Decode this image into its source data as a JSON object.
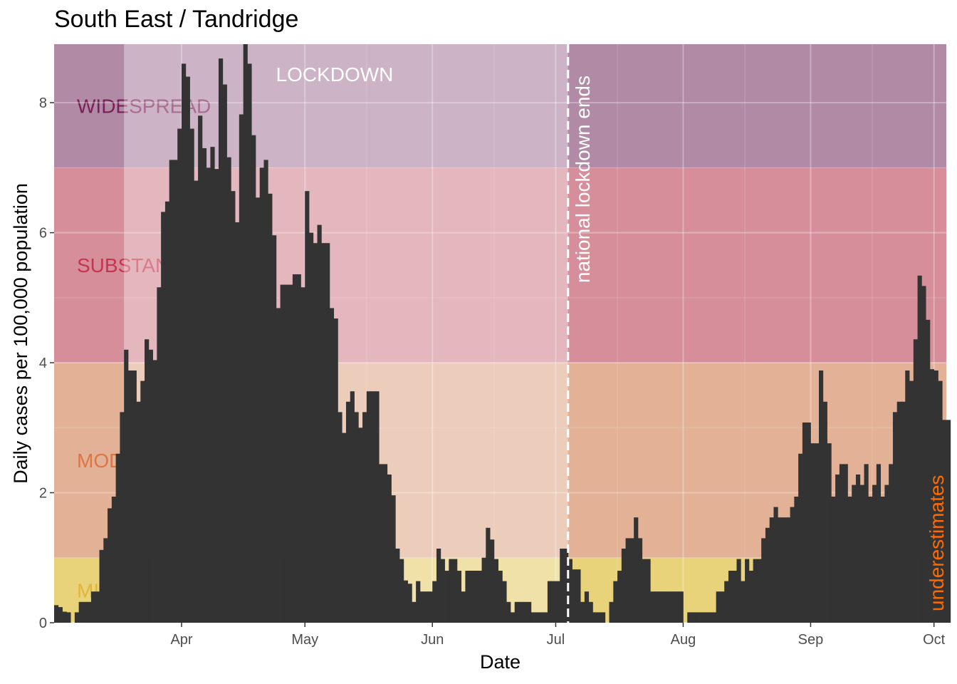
{
  "page": {
    "title": "South East / Tandridge"
  },
  "colors": {
    "bar": "#333333",
    "grid": "#ffffff",
    "lockdown_overlay": "#ffffff",
    "lockdown_text": "#ffffff",
    "lockdown_end_line": "#ffffff",
    "underestimates_text": "#ff6a00"
  },
  "chart_data": {
    "type": "bar",
    "title": "South East / Tandridge",
    "xlabel": "Date",
    "ylabel": "Daily cases per 100,000 population",
    "x_start": "2020-03-01",
    "x_range": [
      "2020-03-01",
      "2020-10-04"
    ],
    "ylim": [
      0,
      8.9
    ],
    "y_ticks": [
      0,
      2,
      4,
      6,
      8
    ],
    "x_ticks": [
      {
        "date": "2020-04-01",
        "label": "Apr"
      },
      {
        "date": "2020-05-01",
        "label": "May"
      },
      {
        "date": "2020-06-01",
        "label": "Jun"
      },
      {
        "date": "2020-07-01",
        "label": "Jul"
      },
      {
        "date": "2020-08-01",
        "label": "Aug"
      },
      {
        "date": "2020-09-01",
        "label": "Sep"
      },
      {
        "date": "2020-10-01",
        "label": "Oct"
      }
    ],
    "grid": true,
    "bands": [
      {
        "label": "MILD",
        "from": 0,
        "to": 1,
        "color": "#e8d27a",
        "text_color": "#e0b63a"
      },
      {
        "label": "MODERATE",
        "from": 1,
        "to": 4,
        "color": "#e2b196",
        "text_color": "#de7644"
      },
      {
        "label": "SUBSTANTIAL",
        "from": 4,
        "to": 7,
        "color": "#d68f9a",
        "text_color": "#c8344e"
      },
      {
        "label": "WIDESPREAD",
        "from": 7,
        "to": 8.9,
        "color": "#b18ba6",
        "text_color": "#7a1f55"
      }
    ],
    "lockdown": {
      "label": "LOCKDOWN",
      "start": "2020-03-18",
      "end": "2020-07-04"
    },
    "annotations": [
      {
        "label": "national lockdown ends",
        "date": "2020-07-04"
      },
      {
        "label": "underestimates",
        "date": "2020-10-01"
      }
    ],
    "values": [
      0.27,
      0.24,
      0.17,
      0.16,
      0.0,
      0.16,
      0.32,
      0.32,
      0.32,
      0.48,
      0.48,
      1.12,
      1.3,
      1.76,
      1.94,
      2.6,
      3.24,
      4.2,
      3.88,
      3.88,
      3.4,
      3.72,
      4.36,
      4.2,
      4.04,
      5.16,
      6.32,
      6.48,
      7.12,
      7.12,
      7.6,
      8.6,
      8.4,
      7.6,
      6.8,
      7.8,
      7.3,
      7.0,
      7.32,
      6.98,
      8.68,
      8.28,
      7.16,
      6.64,
      6.16,
      7.82,
      9.0,
      8.6,
      7.5,
      6.54,
      7.0,
      7.12,
      6.6,
      5.96,
      4.84,
      5.2,
      5.2,
      5.2,
      5.36,
      5.36,
      5.16,
      6.64,
      6.0,
      5.84,
      6.12,
      5.84,
      5.84,
      4.84,
      4.68,
      3.24,
      2.92,
      3.4,
      3.56,
      3.24,
      3.0,
      3.24,
      3.56,
      3.56,
      3.56,
      2.44,
      2.44,
      2.28,
      1.96,
      1.14,
      0.98,
      0.65,
      0.6,
      0.32,
      0.64,
      0.48,
      0.48,
      0.48,
      0.64,
      1.14,
      0.98,
      0.8,
      0.98,
      0.98,
      0.8,
      0.48,
      0.8,
      0.8,
      0.8,
      0.8,
      1.0,
      1.46,
      1.28,
      0.98,
      0.8,
      0.64,
      0.32,
      0.16,
      0.32,
      0.32,
      0.32,
      0.32,
      0.16,
      0.16,
      0.16,
      0.16,
      0.64,
      0.64,
      0.64,
      1.14,
      1.14,
      0.98,
      0.82,
      0.82,
      0.32,
      0.48,
      0.32,
      0.16,
      0.16,
      0.16,
      0.0,
      0.32,
      0.64,
      0.8,
      1.14,
      1.3,
      1.3,
      1.62,
      1.3,
      0.98,
      0.98,
      0.48,
      0.48,
      0.48,
      0.48,
      0.48,
      0.48,
      0.48,
      0.48,
      0.0,
      0.16,
      0.16,
      0.16,
      0.16,
      0.16,
      0.16,
      0.16,
      0.48,
      0.48,
      0.64,
      0.8,
      0.8,
      0.98,
      0.64,
      0.98,
      0.8,
      0.98,
      0.98,
      1.3,
      1.46,
      1.62,
      1.78,
      1.62,
      1.62,
      1.62,
      1.78,
      1.94,
      2.6,
      3.08,
      3.08,
      2.76,
      2.76,
      3.88,
      3.4,
      2.76,
      1.94,
      2.28,
      2.44,
      2.44,
      1.94,
      2.12,
      2.28,
      2.12,
      2.44,
      1.94,
      2.12,
      2.44,
      1.94,
      2.12,
      2.44,
      3.24,
      3.4,
      3.4,
      3.88,
      3.72,
      4.36,
      5.34,
      5.18,
      4.66,
      3.9,
      3.88,
      3.72,
      3.12,
      3.12
    ]
  }
}
